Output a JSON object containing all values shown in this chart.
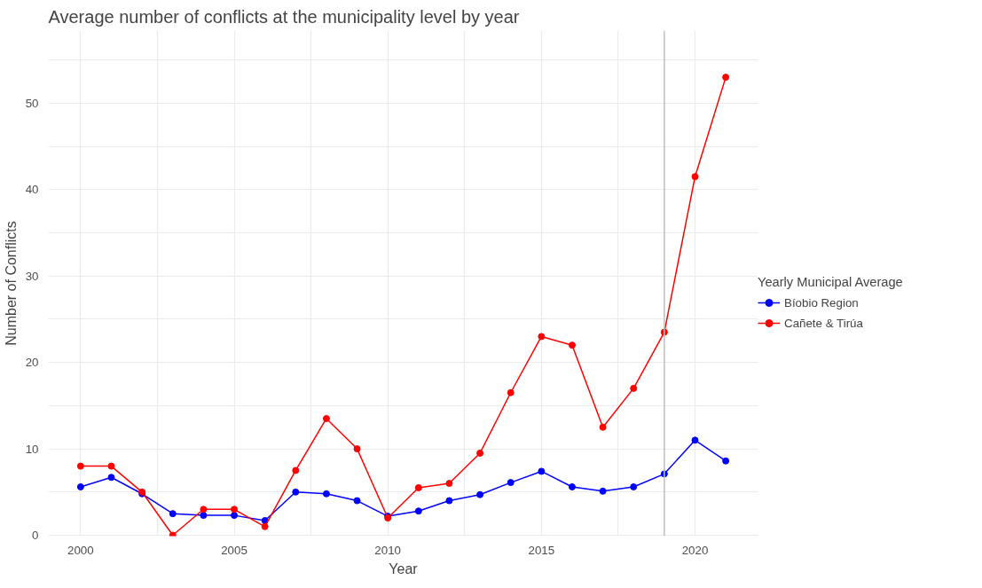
{
  "chart_data": {
    "type": "line",
    "title": "Average number of conflicts at the municipality level by year",
    "xlabel": "Year",
    "ylabel": "Number of Conflicts",
    "legend_title": "Yearly Municipal Average",
    "x": [
      2000,
      2001,
      2002,
      2003,
      2004,
      2005,
      2006,
      2007,
      2008,
      2009,
      2010,
      2011,
      2012,
      2013,
      2014,
      2015,
      2016,
      2017,
      2018,
      2019,
      2020,
      2021
    ],
    "series": [
      {
        "name": "Bíobio Region",
        "color": "#0000ff",
        "values": [
          5.6,
          6.7,
          4.8,
          2.5,
          2.3,
          2.3,
          1.7,
          5.0,
          4.8,
          4.0,
          2.2,
          2.8,
          4.0,
          4.7,
          6.1,
          7.4,
          5.6,
          5.1,
          5.6,
          7.1,
          11.0,
          8.6
        ]
      },
      {
        "name": "Cañete & Tirúa",
        "color": "#ff0000",
        "values": [
          8,
          8,
          5,
          0,
          3,
          3,
          1,
          7.5,
          13.5,
          10,
          2,
          5.5,
          6,
          9.5,
          16.5,
          23,
          22,
          12.5,
          17,
          23.5,
          41.5,
          53
        ]
      }
    ],
    "xlim": [
      1998.95,
      2022.05
    ],
    "ylim": [
      -0.1,
      58.4
    ],
    "xticks": [
      2000,
      {
        "value": 2002.5,
        "label": null
      },
      2005,
      {
        "value": 2007.5,
        "label": null
      },
      2010,
      {
        "value": 2012.5,
        "label": null
      },
      2015,
      {
        "value": 2017.5,
        "label": null
      },
      2020
    ],
    "yticks": [
      0,
      {
        "value": 5,
        "label": null
      },
      10,
      {
        "value": 15,
        "label": null
      },
      20,
      {
        "value": 25,
        "label": null
      },
      30,
      {
        "value": 35,
        "label": null
      },
      40,
      {
        "value": 45,
        "label": null
      },
      50,
      {
        "value": 55,
        "label": null
      }
    ],
    "ref_lines": [
      {
        "axis": "x",
        "value": 2019,
        "label": null,
        "color": "#bebebe"
      }
    ],
    "grid": true,
    "legend": "right",
    "marker": "circle",
    "line_style": "solid"
  }
}
